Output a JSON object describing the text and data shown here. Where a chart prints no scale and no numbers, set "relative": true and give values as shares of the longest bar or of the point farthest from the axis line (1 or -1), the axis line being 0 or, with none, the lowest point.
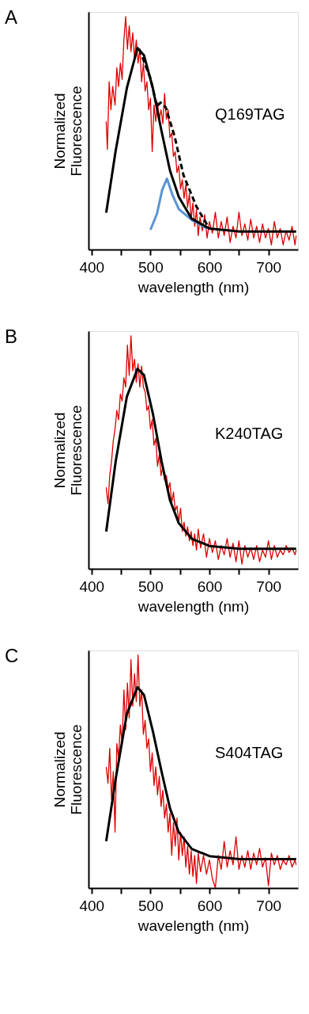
{
  "chart_data": [
    {
      "type": "line",
      "title": "A",
      "xlabel": "wavelength (nm)",
      "ylabel": "Normalized Fluorescence",
      "relative": true,
      "grid": false,
      "annotations": [
        "Q169TAG"
      ],
      "xlim": [
        395,
        750
      ],
      "xticks": [
        400,
        {
          "value": 450,
          "label": null
        },
        500,
        {
          "value": 550,
          "label": null
        },
        600,
        {
          "value": 650,
          "label": null
        },
        700
      ],
      "series": [
        {
          "color": "#dd0000",
          "x": [
            425,
            427,
            430,
            433,
            436,
            440,
            443,
            446,
            449,
            452,
            455,
            458,
            461,
            464,
            467,
            470,
            473,
            476,
            479,
            482,
            485,
            488,
            491,
            494,
            497,
            500,
            503,
            506,
            509,
            512,
            515,
            518,
            521,
            524,
            527,
            530,
            533,
            536,
            539,
            542,
            545,
            548,
            551,
            554,
            557,
            560,
            563,
            566,
            569,
            572,
            575,
            578,
            581,
            584,
            588,
            592,
            596,
            600,
            605,
            610,
            615,
            620,
            625,
            630,
            635,
            640,
            645,
            650,
            655,
            660,
            665,
            670,
            675,
            680,
            685,
            690,
            695,
            700,
            705,
            710,
            715,
            720,
            725,
            730,
            735,
            740,
            745,
            747
          ],
          "values": [
            0.55,
            0.43,
            0.72,
            0.6,
            0.7,
            0.62,
            0.78,
            0.7,
            0.8,
            0.73,
            0.9,
            1.0,
            0.86,
            0.96,
            0.85,
            0.93,
            0.82,
            0.9,
            0.8,
            0.86,
            0.72,
            0.8,
            0.68,
            0.72,
            0.6,
            0.65,
            0.42,
            0.62,
            0.55,
            0.63,
            0.56,
            0.6,
            0.54,
            0.67,
            0.56,
            0.6,
            0.48,
            0.5,
            0.4,
            0.42,
            0.33,
            0.36,
            0.26,
            0.3,
            0.22,
            0.28,
            0.18,
            0.24,
            0.13,
            0.2,
            0.1,
            0.17,
            0.06,
            0.14,
            0.08,
            0.15,
            0.05,
            0.12,
            0.07,
            0.16,
            0.05,
            0.12,
            0.06,
            0.14,
            0.03,
            0.1,
            0.05,
            0.16,
            0.06,
            0.11,
            0.04,
            0.13,
            0.05,
            0.1,
            0.03,
            0.11,
            0.05,
            0.09,
            0.02,
            0.12,
            0.05,
            0.09,
            0.02,
            0.08,
            0.04,
            0.1,
            0.02,
            0.06
          ]
        },
        {
          "color": "#5b93d3",
          "x": [
            500,
            511,
            520,
            528,
            537,
            548,
            570,
            596
          ],
          "values": [
            0.085,
            0.153,
            0.257,
            0.304,
            0.236,
            0.174,
            0.127,
            0.09
          ]
        },
        {
          "color": "#000000",
          "line_style": "dashed",
          "x": [
            481,
            500,
            511,
            517,
            526,
            541,
            556,
            578,
            600
          ],
          "values": [
            0.86,
            0.735,
            0.615,
            0.631,
            0.61,
            0.485,
            0.319,
            0.184,
            0.09
          ]
        },
        {
          "color": "#000000",
          "x": [
            425,
            441,
            460,
            478,
            489,
            504,
            519,
            533,
            548,
            570,
            600,
            651,
            747
          ],
          "values": [
            0.158,
            0.423,
            0.693,
            0.865,
            0.834,
            0.693,
            0.506,
            0.34,
            0.226,
            0.132,
            0.09,
            0.077,
            0.077
          ]
        }
      ]
    },
    {
      "type": "line",
      "title": "B",
      "xlabel": "wavelength (nm)",
      "ylabel": "Normalized Fluorescence",
      "relative": true,
      "grid": false,
      "annotations": [
        "K240TAG"
      ],
      "xlim": [
        395,
        750
      ],
      "xticks": [
        400,
        {
          "value": 450,
          "label": null
        },
        500,
        {
          "value": 550,
          "label": null
        },
        600,
        {
          "value": 650,
          "label": null
        },
        700
      ],
      "series": [
        {
          "color": "#dd0000",
          "x": [
            425,
            428,
            431,
            434,
            437,
            440,
            443,
            446,
            449,
            452,
            455,
            458,
            461,
            464,
            467,
            470,
            473,
            476,
            479,
            482,
            485,
            488,
            491,
            494,
            497,
            500,
            503,
            506,
            509,
            512,
            515,
            518,
            521,
            524,
            527,
            530,
            533,
            536,
            539,
            542,
            545,
            548,
            551,
            554,
            557,
            560,
            563,
            566,
            569,
            572,
            575,
            578,
            581,
            585,
            590,
            595,
            600,
            605,
            610,
            615,
            620,
            625,
            630,
            635,
            640,
            645,
            650,
            655,
            660,
            665,
            670,
            675,
            680,
            685,
            690,
            695,
            700,
            705,
            710,
            715,
            720,
            725,
            730,
            735,
            740,
            745,
            747
          ],
          "values": [
            0.35,
            0.28,
            0.4,
            0.46,
            0.55,
            0.6,
            0.68,
            0.64,
            0.75,
            0.72,
            0.82,
            0.78,
            0.96,
            0.83,
            1.0,
            0.85,
            0.9,
            0.8,
            0.88,
            0.78,
            0.87,
            0.78,
            0.76,
            0.68,
            0.7,
            0.6,
            0.64,
            0.53,
            0.56,
            0.44,
            0.49,
            0.4,
            0.44,
            0.38,
            0.4,
            0.34,
            0.37,
            0.28,
            0.33,
            0.25,
            0.27,
            0.2,
            0.26,
            0.16,
            0.2,
            0.14,
            0.18,
            0.12,
            0.16,
            0.1,
            0.15,
            0.08,
            0.17,
            0.09,
            0.15,
            0.05,
            0.13,
            0.07,
            0.12,
            0.04,
            0.1,
            0.06,
            0.13,
            0.05,
            0.11,
            0.03,
            0.12,
            0.02,
            0.1,
            0.05,
            0.09,
            0.04,
            0.1,
            0.03,
            0.08,
            0.05,
            0.12,
            0.04,
            0.1,
            0.05,
            0.08,
            0.06,
            0.1,
            0.07,
            0.09,
            0.06,
            0.08
          ]
        },
        {
          "color": "#000000",
          "x": [
            425,
            441,
            460,
            478,
            489,
            504,
            519,
            533,
            548,
            570,
            600,
            651,
            747
          ],
          "values": [
            0.16,
            0.46,
            0.739,
            0.858,
            0.832,
            0.667,
            0.46,
            0.295,
            0.196,
            0.129,
            0.098,
            0.086,
            0.086
          ]
        }
      ]
    },
    {
      "type": "line",
      "title": "C",
      "xlabel": "wavelength (nm)",
      "ylabel": "Normalized Fluorescence",
      "relative": true,
      "grid": false,
      "annotations": [
        "S404TAG"
      ],
      "xlim": [
        395,
        750
      ],
      "xticks": [
        400,
        {
          "value": 450,
          "label": null
        },
        500,
        {
          "value": 550,
          "label": null
        },
        600,
        {
          "value": 650,
          "label": null
        },
        700
      ],
      "series": [
        {
          "color": "#dd0000",
          "x": [
            425,
            428,
            431,
            434,
            437,
            440,
            443,
            446,
            449,
            452,
            455,
            458,
            461,
            464,
            467,
            470,
            473,
            476,
            479,
            482,
            485,
            488,
            491,
            494,
            497,
            500,
            503,
            506,
            509,
            512,
            515,
            518,
            521,
            524,
            527,
            530,
            533,
            536,
            539,
            542,
            545,
            548,
            551,
            554,
            557,
            560,
            563,
            566,
            569,
            572,
            575,
            578,
            581,
            585,
            590,
            595,
            600,
            605,
            610,
            615,
            620,
            625,
            630,
            635,
            640,
            645,
            650,
            655,
            660,
            665,
            670,
            675,
            680,
            685,
            690,
            695,
            700,
            705,
            710,
            715,
            720,
            725,
            730,
            735,
            740,
            745,
            747
          ],
          "values": [
            0.52,
            0.45,
            0.6,
            0.38,
            0.5,
            0.24,
            0.62,
            0.56,
            0.7,
            0.62,
            0.85,
            0.68,
            0.88,
            0.73,
            0.98,
            0.78,
            0.92,
            0.8,
            1.0,
            0.78,
            0.85,
            0.66,
            0.72,
            0.6,
            0.64,
            0.5,
            0.58,
            0.44,
            0.52,
            0.4,
            0.48,
            0.35,
            0.42,
            0.3,
            0.36,
            0.24,
            0.32,
            0.14,
            0.28,
            0.18,
            0.3,
            0.12,
            0.24,
            0.14,
            0.22,
            0.09,
            0.18,
            0.06,
            0.16,
            0.05,
            0.14,
            0.02,
            0.15,
            0.07,
            0.14,
            0.06,
            0.12,
            0.04,
            0.0,
            0.14,
            0.08,
            0.2,
            0.09,
            0.16,
            0.1,
            0.22,
            0.08,
            0.14,
            0.09,
            0.16,
            0.08,
            0.15,
            0.1,
            0.17,
            0.09,
            0.13,
            0.01,
            0.15,
            0.1,
            0.14,
            0.08,
            0.12,
            0.1,
            0.14,
            0.09,
            0.12,
            0.1
          ]
        },
        {
          "color": "#000000",
          "x": [
            425,
            441,
            460,
            478,
            489,
            504,
            519,
            533,
            548,
            570,
            600,
            651,
            747
          ],
          "values": [
            0.201,
            0.467,
            0.747,
            0.862,
            0.829,
            0.674,
            0.498,
            0.343,
            0.24,
            0.168,
            0.137,
            0.124,
            0.124
          ]
        }
      ]
    }
  ]
}
